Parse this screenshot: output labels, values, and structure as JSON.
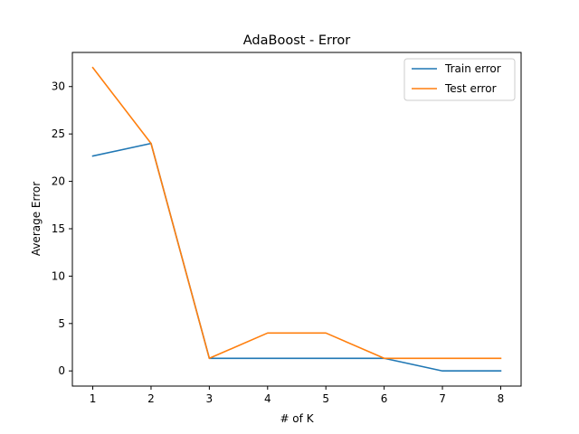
{
  "chart_data": {
    "type": "line",
    "title": "AdaBoost - Error",
    "xlabel": "# of K",
    "ylabel": "Average Error",
    "x": [
      1,
      2,
      3,
      4,
      5,
      6,
      7,
      8
    ],
    "xticks": [
      1,
      2,
      3,
      4,
      5,
      6,
      7,
      8
    ],
    "yticks": [
      0,
      5,
      10,
      15,
      20,
      25,
      30
    ],
    "xlim": [
      0.65,
      8.35
    ],
    "ylim": [
      -1.6,
      33.6
    ],
    "grid": false,
    "legend_position": "top-right",
    "series": [
      {
        "name": "Train error",
        "color": "#1f77b4",
        "values": [
          22.67,
          24.0,
          1.33,
          1.33,
          1.33,
          1.33,
          0.0,
          0.0
        ]
      },
      {
        "name": "Test error",
        "color": "#ff7f0e",
        "values": [
          32.0,
          24.0,
          1.33,
          4.0,
          4.0,
          1.33,
          1.33,
          1.33
        ]
      }
    ]
  }
}
